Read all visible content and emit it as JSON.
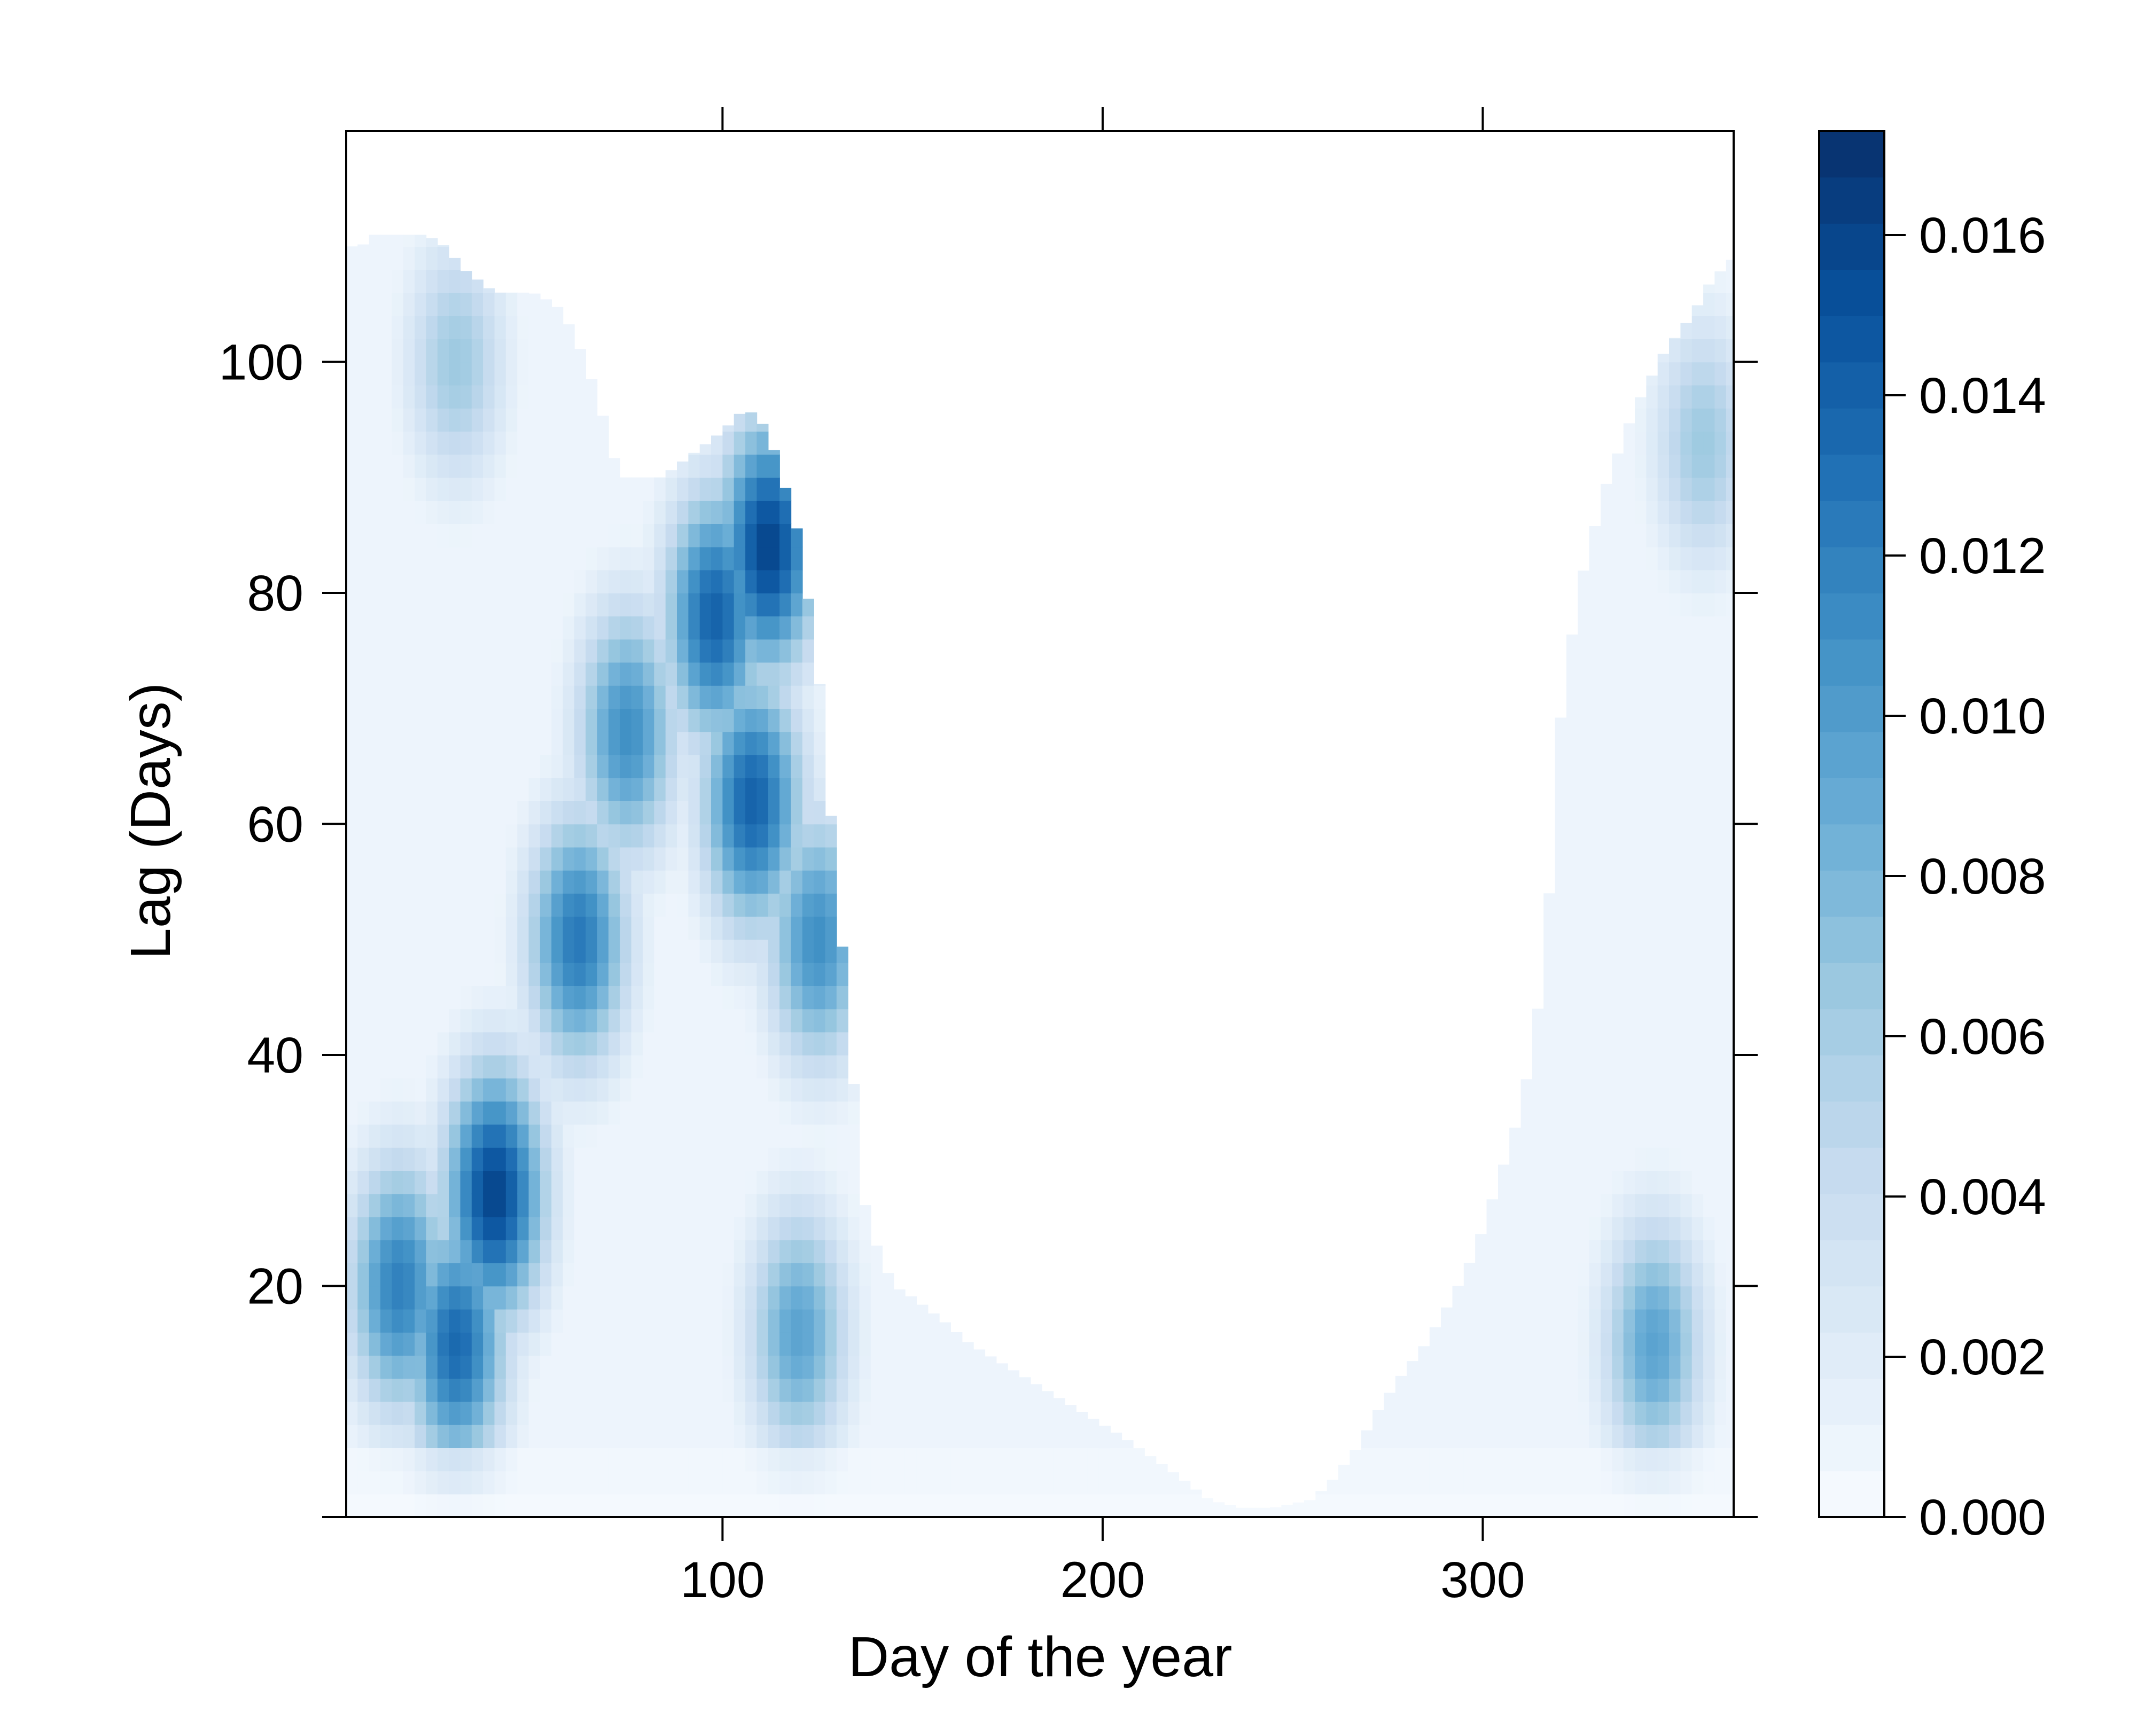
{
  "chart_data": {
    "type": "heatmap",
    "title": "",
    "xlabel": "Day of the year",
    "ylabel": "Lag (Days)",
    "xlim": [
      1,
      366
    ],
    "ylim": [
      0,
      120
    ],
    "x_ticks": [
      100,
      200,
      300
    ],
    "x_tick_labels": [
      "100",
      "200",
      "300"
    ],
    "y_ticks": [
      20,
      40,
      60,
      80,
      100
    ],
    "y_tick_labels": [
      "20",
      "40",
      "60",
      "80",
      "100"
    ],
    "colorbar": {
      "range": [
        0,
        0.0173
      ],
      "ticks": [
        0,
        0.002,
        0.004,
        0.006,
        0.008,
        0.01,
        0.012,
        0.014,
        0.016
      ],
      "tick_labels": [
        "0.000",
        "0.002",
        "0.004",
        "0.006",
        "0.008",
        "0.010",
        "0.012",
        "0.014",
        "0.016"
      ],
      "colors": [
        "#F7FBFF",
        "#DEEBF7",
        "#C6DBEF",
        "#9ECAE1",
        "#6BAED6",
        "#4292C6",
        "#2171B5",
        "#08519C",
        "#08306B"
      ]
    },
    "max_lag_boundary": {
      "x": [
        1,
        5,
        8,
        22,
        27,
        32,
        36,
        40,
        50,
        56,
        60,
        64,
        68,
        71,
        74,
        75,
        84,
        88,
        92,
        96,
        100,
        103,
        106,
        110,
        114,
        120,
        125,
        130,
        134,
        136,
        138,
        141,
        145,
        150,
        158,
        165,
        175,
        190,
        205,
        218,
        228,
        236,
        245,
        255,
        260,
        267,
        272,
        278,
        285,
        292,
        298,
        303,
        308,
        313,
        316,
        318,
        320,
        325,
        332,
        340,
        348,
        355,
        360,
        366
      ],
      "y": [
        110,
        110,
        111,
        111,
        110,
        108,
        107,
        106,
        106,
        105,
        103,
        100,
        96,
        92,
        90,
        90,
        90,
        91,
        92,
        93,
        94,
        95,
        96,
        95,
        92,
        85,
        74,
        55,
        40,
        30,
        26,
        23,
        20,
        19,
        17,
        15,
        13,
        10,
        7,
        4,
        1.5,
        0.8,
        0.8,
        1.5,
        3,
        6,
        9,
        12,
        15,
        19,
        23,
        28,
        33,
        40,
        48,
        56,
        68,
        80,
        89,
        96,
        101,
        104,
        107,
        109
      ]
    },
    "hotspots": [
      {
        "x": 40,
        "y": 28,
        "value": 0.016
      },
      {
        "x": 30,
        "y": 15,
        "value": 0.0135
      },
      {
        "x": 15,
        "y": 20,
        "value": 0.012
      },
      {
        "x": 62,
        "y": 50,
        "value": 0.0125
      },
      {
        "x": 75,
        "y": 68,
        "value": 0.011
      },
      {
        "x": 98,
        "y": 78,
        "value": 0.014
      },
      {
        "x": 112,
        "y": 84,
        "value": 0.016
      },
      {
        "x": 108,
        "y": 62,
        "value": 0.014
      },
      {
        "x": 125,
        "y": 50,
        "value": 0.011
      },
      {
        "x": 120,
        "y": 16,
        "value": 0.0095
      },
      {
        "x": 30,
        "y": 100,
        "value": 0.0065
      },
      {
        "x": 345,
        "y": 15,
        "value": 0.0095
      },
      {
        "x": 358,
        "y": 93,
        "value": 0.0065
      }
    ]
  }
}
